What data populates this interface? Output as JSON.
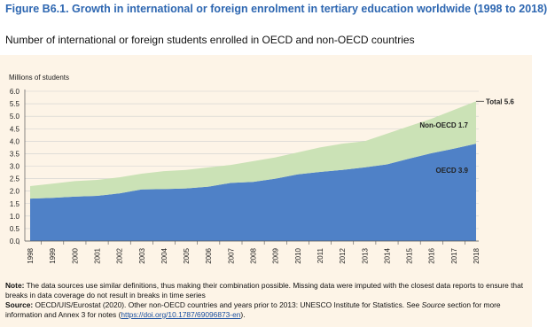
{
  "chart_data": {
    "type": "stacked-area",
    "title": "Figure B6.1. Growth in international or foreign enrolment in tertiary education worldwide (1998 to 2018)",
    "subtitle": "Number of international or foreign students enrolled in OECD and non-OECD countries",
    "y_label": "Millions of students",
    "categories": [
      "1998",
      "1999",
      "2000",
      "2001",
      "2002",
      "2003",
      "2004",
      "2005",
      "2006",
      "2007",
      "2008",
      "2009",
      "2010",
      "2011",
      "2012",
      "2013",
      "2014",
      "2015",
      "2016",
      "2017",
      "2018"
    ],
    "series": [
      {
        "name": "OECD",
        "color": "#4f81c7",
        "values": [
          1.7,
          1.73,
          1.78,
          1.81,
          1.91,
          2.07,
          2.08,
          2.11,
          2.18,
          2.33,
          2.37,
          2.5,
          2.67,
          2.77,
          2.85,
          2.95,
          3.07,
          3.3,
          3.52,
          3.7,
          3.9
        ]
      },
      {
        "name": "Non-OECD",
        "color": "#cbe2b6",
        "values": [
          0.5,
          0.57,
          0.62,
          0.64,
          0.64,
          0.63,
          0.72,
          0.74,
          0.77,
          0.72,
          0.83,
          0.85,
          0.88,
          0.98,
          1.05,
          1.05,
          1.23,
          1.3,
          1.38,
          1.55,
          1.7
        ]
      }
    ],
    "annotations": [
      "Total 5.6",
      "Non-OECD 1.7",
      "OECD 3.9"
    ],
    "ylim": [
      0,
      6
    ],
    "yticks": [
      {
        "value": 0,
        "label": "0.0"
      },
      0.5,
      {
        "value": 1,
        "label": "1.0"
      },
      1.5,
      {
        "value": 2,
        "label": "2.0"
      },
      2.5,
      {
        "value": 3,
        "label": "3.0"
      },
      3.5,
      {
        "value": 4,
        "label": "4.0"
      },
      4.5,
      {
        "value": 5,
        "label": "5.0"
      },
      5.5,
      {
        "value": 6,
        "label": "6.0"
      }
    ],
    "grid": true
  },
  "notes": {
    "note_label": "Note:",
    "note": "The data sources use similar definitions, thus making their combination possible. Missing data were imputed with the closest data reports to ensure that breaks in data coverage do not result in breaks in time series",
    "source_label": "Source:",
    "source_1": "OECD/UIS/Eurostat (2020). Other non-OECD countries and years prior to 2013: UNESCO Institute for Statistics. See",
    "source_italic": "Source",
    "source_2": "section for more information and Annex 3 for notes (",
    "link": "https://doi.org/10.1787/69096873-en",
    "source_3": ")."
  }
}
